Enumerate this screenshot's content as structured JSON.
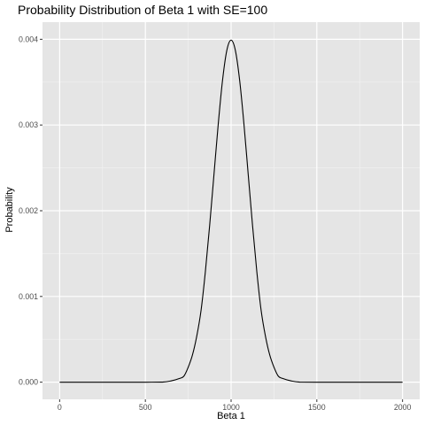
{
  "chart_data": {
    "type": "line",
    "title": "Probability Distribution of Beta 1 with SE=100",
    "xlabel": "Beta 1",
    "ylabel": "Probability",
    "xlim": [
      0,
      2000
    ],
    "ylim": [
      0,
      0.004
    ],
    "x_ticks": [
      0,
      500,
      1000,
      1500,
      2000
    ],
    "x_tick_labels": [
      "0",
      "500",
      "1000",
      "1500",
      "2000"
    ],
    "y_ticks": [
      0,
      0.001,
      0.002,
      0.003,
      0.004
    ],
    "y_tick_labels": [
      "0.000",
      "0.001",
      "0.002",
      "0.003",
      "0.004"
    ],
    "grid": true,
    "legend": "none",
    "series": [
      {
        "x": [
          0,
          500,
          600,
          650,
          700,
          725,
          750,
          775,
          800,
          825,
          850,
          875,
          900,
          925,
          950,
          975,
          1000,
          1025,
          1050,
          1075,
          1100,
          1125,
          1150,
          1175,
          1200,
          1225,
          1250,
          1275,
          1300,
          1350,
          1400,
          1500,
          2000
        ],
        "y": [
          0,
          6e-10,
          5e-07,
          1.5e-05,
          4.4e-05,
          7.1e-05,
          0.000175,
          0.00032,
          0.00054,
          0.00084,
          0.00129,
          0.00183,
          0.00242,
          0.00301,
          0.00352,
          0.00387,
          0.00399,
          0.00387,
          0.00352,
          0.00301,
          0.00242,
          0.00183,
          0.00129,
          0.00084,
          0.00054,
          0.00032,
          0.000175,
          7.1e-05,
          4.4e-05,
          1.5e-05,
          5e-07,
          0,
          0
        ]
      }
    ],
    "colors": {
      "panel_background": "#e5e5e5",
      "grid_major": "#ffffff",
      "grid_minor": "#f2f2f2",
      "line": "#000000"
    }
  }
}
